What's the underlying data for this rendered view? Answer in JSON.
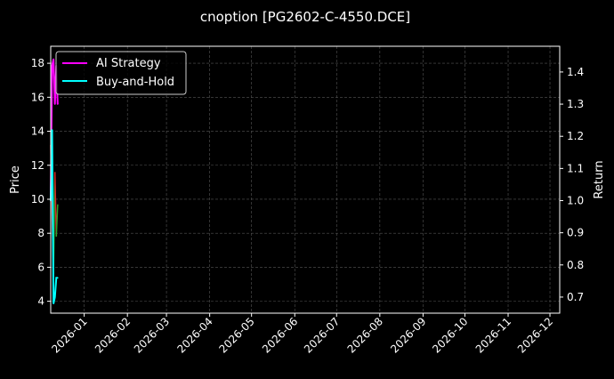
{
  "chart_data": {
    "type": "line",
    "title": "cnoption [PG2602-C-4550.DCE]",
    "ylabel": "Price",
    "y2label": "Return",
    "xlim": [
      "2025-12-08",
      "2026-12-08"
    ],
    "ylim": [
      3.3,
      19.0
    ],
    "y2lim": [
      0.65,
      1.48
    ],
    "x_ticks": [
      "2026-01",
      "2026-02",
      "2026-03",
      "2026-04",
      "2026-05",
      "2026-06",
      "2026-07",
      "2026-08",
      "2026-09",
      "2026-10",
      "2026-11",
      "2026-12"
    ],
    "y_ticks": [
      4,
      6,
      8,
      10,
      12,
      14,
      16,
      18
    ],
    "y2_ticks": [
      0.7,
      0.8,
      0.9,
      1.0,
      1.1,
      1.2,
      1.3,
      1.4
    ],
    "grid": true,
    "legend": "top-left",
    "x": [
      "2025-12-08",
      "2025-12-09",
      "2025-12-10",
      "2025-12-11",
      "2025-12-12",
      "2025-12-13"
    ],
    "price": [
      13.2,
      9.0,
      5.6,
      11.6,
      7.8,
      9.7
    ],
    "series": [
      {
        "name": "AI Strategy",
        "axis": "right",
        "color": "#ff00ff",
        "values": [
          1.0,
          1.42,
          1.44,
          1.3,
          1.42,
          1.3
        ]
      },
      {
        "name": "Buy-and-Hold",
        "axis": "right",
        "color": "#00ffff",
        "values": [
          1.0,
          1.22,
          0.68,
          0.7,
          0.76,
          0.76
        ]
      }
    ],
    "price_up_color": "#2ca02c",
    "price_down_color": "#d62728"
  }
}
